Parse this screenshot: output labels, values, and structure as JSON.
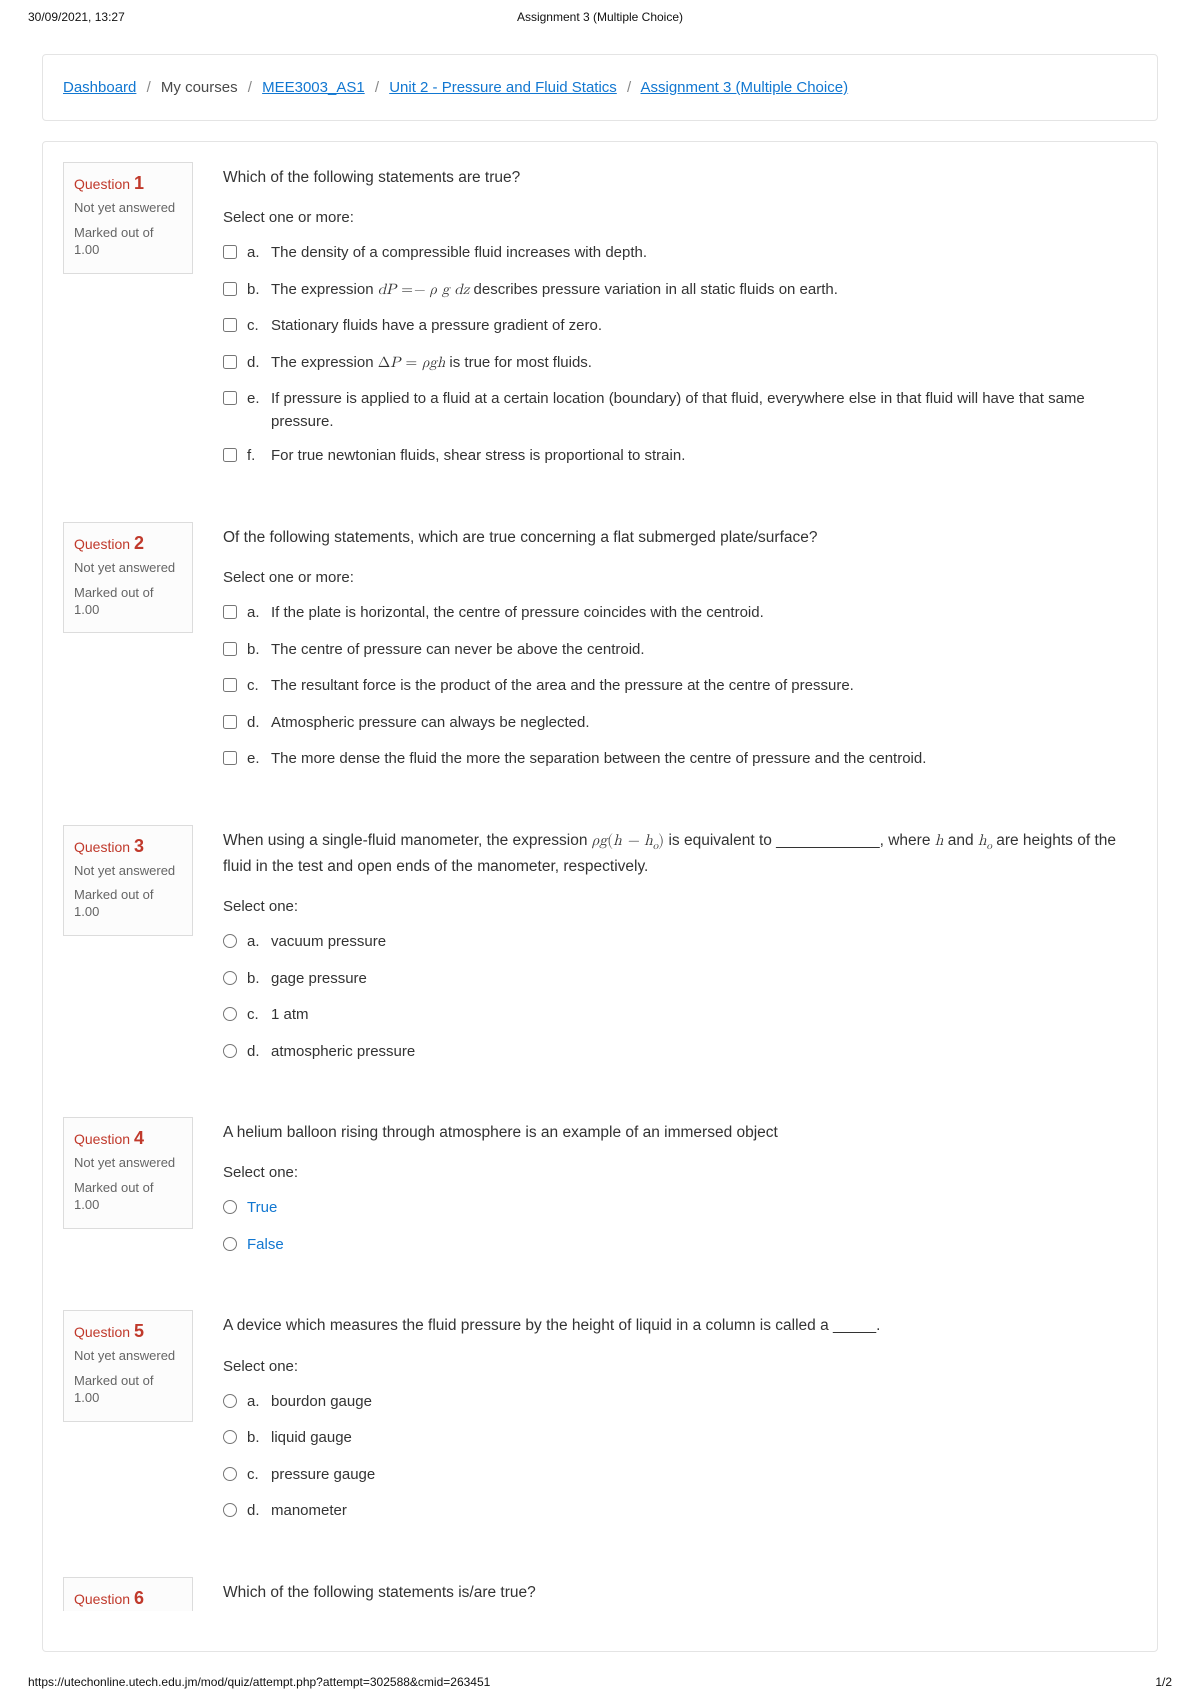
{
  "print": {
    "datetime": "30/09/2021, 13:27",
    "title": "Assignment 3 (Multiple Choice)",
    "url": "https://utechonline.utech.edu.jm/mod/quiz/attempt.php?attempt=302588&cmid=263451",
    "pagenum": "1/2"
  },
  "breadcrumb": {
    "dashboard": "Dashboard",
    "mycourses": "My courses",
    "course": "MEE3003_AS1",
    "unit": "Unit 2 - Pressure and Fluid Statics",
    "assignment": "Assignment 3 (Multiple Choice)"
  },
  "labels": {
    "question_word": "Question",
    "not_yet": "Not yet answered",
    "marked_out": "Marked out of 1.00",
    "select_multi": "Select one or more:",
    "select_one": "Select one:"
  },
  "q1": {
    "num": "1",
    "stem": "Which of the following statements are true?",
    "a": "The density of a compressible fluid increases with depth.",
    "b_pre": "The expression ",
    "b_post": " describes pressure variation in all static fluids on earth.",
    "c": "Stationary fluids have a pressure gradient of zero.",
    "d_pre": "The expression ",
    "d_post": " is true for most fluids.",
    "e": "If pressure is applied to a fluid at a certain location (boundary) of that fluid, everywhere else in that fluid will have that same pressure.",
    "f": "For true newtonian fluids, shear stress is proportional to strain."
  },
  "q2": {
    "num": "2",
    "stem": "Of the following statements, which are true concerning a flat submerged plate/surface?",
    "a": "If the plate is horizontal, the centre of pressure coincides with the centroid.",
    "b": "The centre of pressure can never be above the centroid.",
    "c": "The resultant force is the product of the area and the pressure at the centre of pressure.",
    "d": "Atmospheric pressure can always be neglected.",
    "e": "The more dense the fluid the more the separation between the centre of pressure and the centroid."
  },
  "q3": {
    "num": "3",
    "stem_pre": "When using a single-fluid manometer, the expression ",
    "stem_mid": " is equivalent to ____________, where ",
    "stem_post": " are heights of the fluid in the test and open ends of the manometer, respectively.",
    "a": "vacuum pressure",
    "b": "gage pressure",
    "c": "1 atm",
    "d": "atmospheric pressure"
  },
  "q4": {
    "num": "4",
    "stem": "A helium balloon rising through atmosphere is an example of an immersed object",
    "true": "True",
    "false": "False"
  },
  "q5": {
    "num": "5",
    "stem": "A device which measures the fluid pressure by the height of liquid in a column is called a _____.",
    "a": "bourdon gauge",
    "b": "liquid gauge",
    "c": "pressure gauge",
    "d": "manometer"
  },
  "q6": {
    "num": "6",
    "stem": "Which of the following statements is/are true?"
  }
}
